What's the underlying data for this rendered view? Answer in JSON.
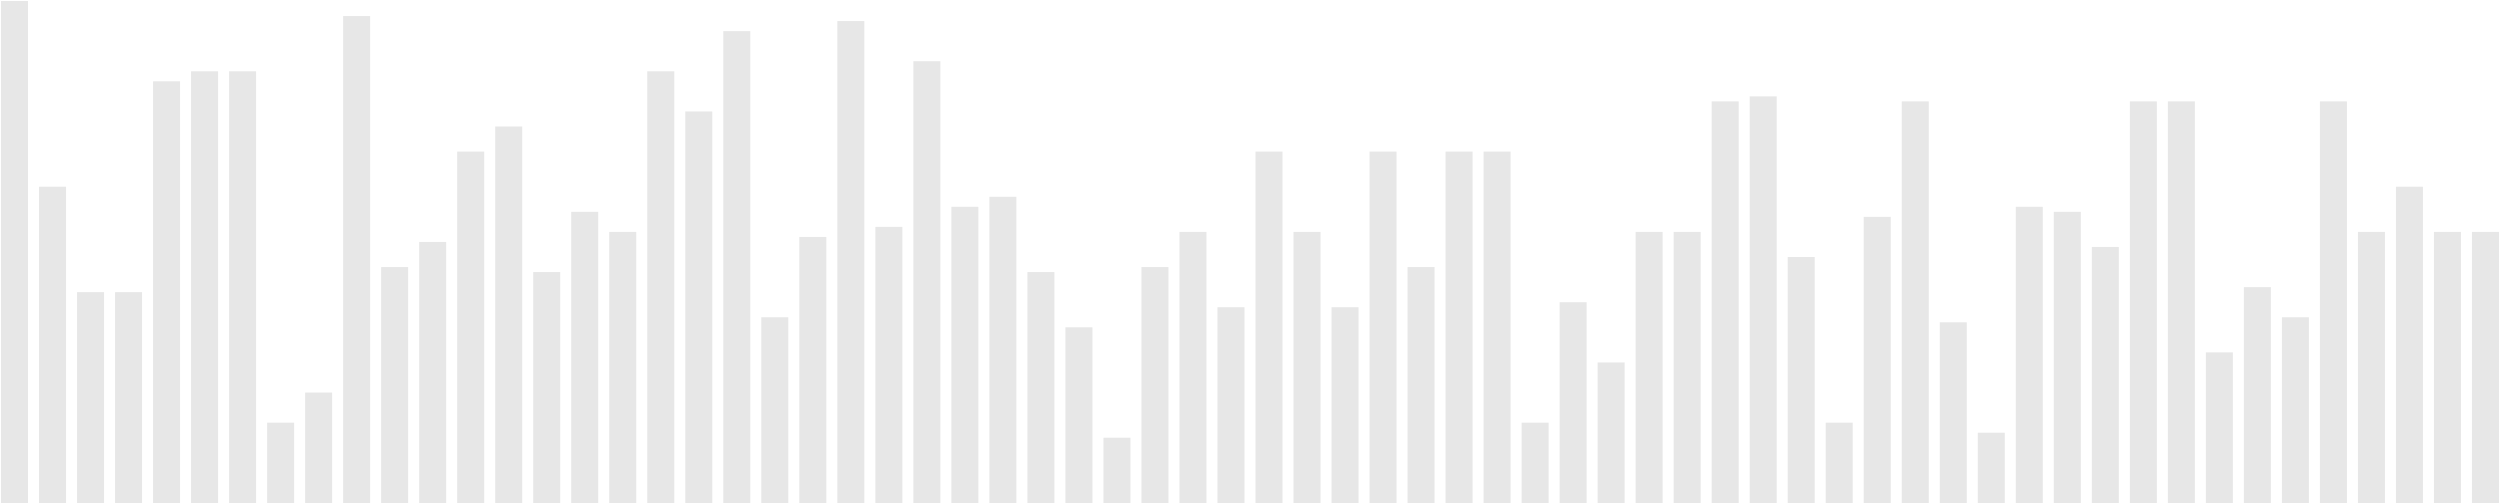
{
  "chart_data": {
    "type": "bar",
    "title": "",
    "xlabel": "",
    "ylabel": "",
    "grid": false,
    "legend": "none",
    "ylim": [
      0,
      100
    ],
    "bar_color": "#e7e7e7",
    "background": "#ffffff",
    "values": [
      100,
      63,
      42,
      42,
      84,
      86,
      86,
      16,
      22,
      97,
      47,
      52,
      70,
      75,
      46,
      58,
      54,
      86,
      78,
      94,
      37,
      53,
      96,
      55,
      88,
      59,
      61,
      46,
      35,
      13,
      47,
      54,
      39,
      70,
      54,
      39,
      70,
      47,
      70,
      70,
      16,
      40,
      28,
      54,
      54,
      80,
      81,
      49,
      16,
      57,
      80,
      36,
      14,
      59,
      58,
      51,
      80,
      80,
      30,
      43,
      37,
      80,
      54,
      63,
      54,
      54
    ]
  }
}
